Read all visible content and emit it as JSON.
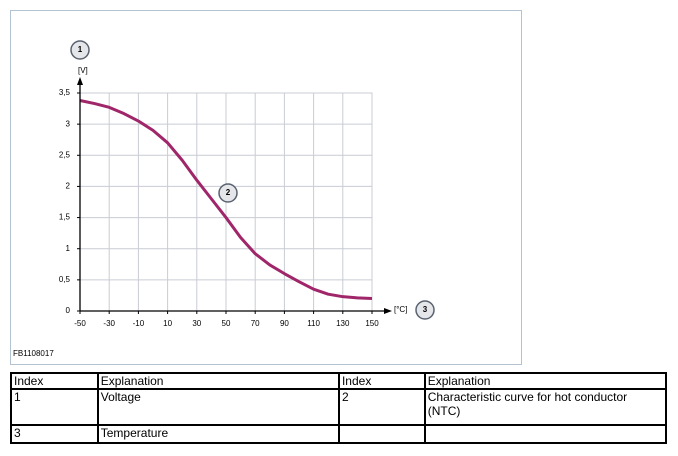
{
  "chart_data": {
    "type": "line",
    "x": [
      -50,
      -40,
      -30,
      -20,
      -10,
      0,
      10,
      20,
      30,
      40,
      50,
      60,
      70,
      80,
      90,
      100,
      110,
      120,
      130,
      140,
      150
    ],
    "values": [
      3.38,
      3.33,
      3.27,
      3.17,
      3.05,
      2.9,
      2.7,
      2.42,
      2.1,
      1.8,
      1.5,
      1.18,
      0.92,
      0.74,
      0.6,
      0.47,
      0.35,
      0.27,
      0.23,
      0.21,
      0.2
    ],
    "color": "#a0266a",
    "xlim": [
      -50,
      150
    ],
    "ylim": [
      0,
      3.5
    ],
    "xticks": [
      -50,
      -30,
      -10,
      10,
      30,
      50,
      70,
      90,
      110,
      130,
      150
    ],
    "yticks": [
      0,
      {
        "value": 0.5,
        "label": "0,5"
      },
      1,
      {
        "value": 1.5,
        "label": "1,5"
      },
      2,
      {
        "value": 2.5,
        "label": "2,5"
      },
      3,
      {
        "value": 3.5,
        "label": "3,5"
      }
    ],
    "ylabel": "[V]",
    "xlabel": "[°C]",
    "grid": true,
    "callouts": [
      "1",
      "2",
      "3"
    ]
  },
  "figure_id": "FB1108017",
  "table": {
    "header": [
      "Index",
      "Explanation",
      "Index",
      "Explanation"
    ],
    "rows": [
      [
        "1",
        "Voltage",
        "2",
        "Characteristic curve for hot conductor (NTC)"
      ],
      [
        "3",
        "Temperature"
      ]
    ]
  }
}
